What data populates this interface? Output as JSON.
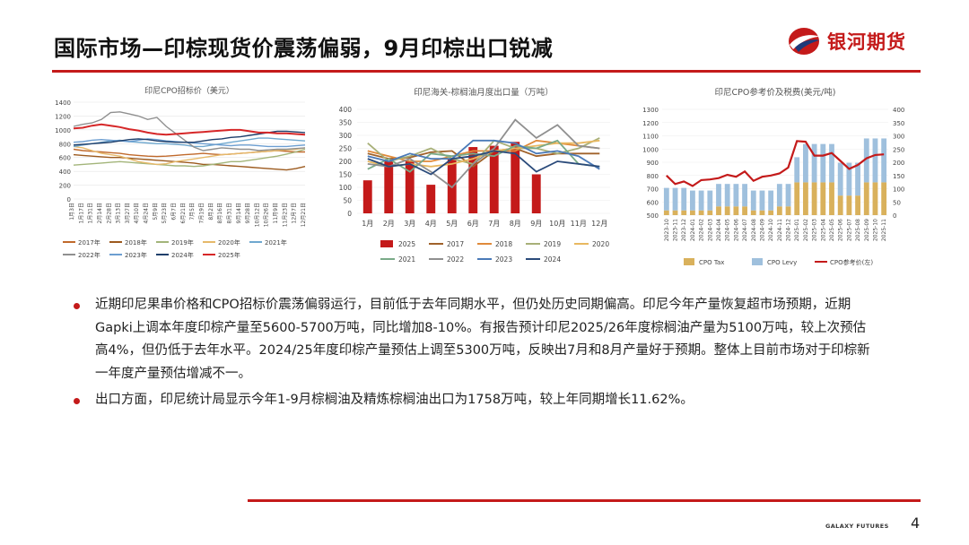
{
  "header": {
    "title": "国际市场—印棕现货价震荡偏弱，9月印棕出口锐减",
    "brand": "银河期货",
    "brand_colors": {
      "red": "#c41a1a",
      "navy": "#1f3a7a"
    }
  },
  "charts": [
    {
      "title": "印尼CPO招标价（美元）",
      "type": "line",
      "y_ticks": [
        "0",
        "200",
        "400",
        "600",
        "800",
        "1000",
        "1200",
        "1400"
      ],
      "x_ticks": [
        "1月3日",
        "1月17日",
        "1月31日",
        "2月14日",
        "2月28日",
        "3月13日",
        "3月27日",
        "4月10日",
        "4月24日",
        "5月9日",
        "5月23日",
        "6月7日",
        "6月21日",
        "7月5日",
        "7月19日",
        "8月2日",
        "8月16日",
        "8月31日",
        "9月14日",
        "9月28日",
        "10月12日",
        "10月26日",
        "11月9日",
        "11月23日",
        "12月7日",
        "12月21日"
      ],
      "legend": [
        "2017年",
        "2018年",
        "2019年",
        "2020年",
        "2021年",
        "2022年",
        "2023年",
        "2024年",
        "2025年"
      ],
      "colors": [
        "#c0692b",
        "#9c5a1e",
        "#a3b57a",
        "#e6b96a",
        "#6fa8cf",
        "#8f8f8f",
        "#6c9ed1",
        "#1f3f6b",
        "#d62728"
      ]
    },
    {
      "title": "印尼海关-棕榈油月度出口量（万吨）",
      "type": "bar+line",
      "y_ticks": [
        "0",
        "50",
        "100",
        "150",
        "200",
        "250",
        "300",
        "350",
        "400"
      ],
      "categories": [
        "1月",
        "2月",
        "3月",
        "4月",
        "5月",
        "6月",
        "7月",
        "8月",
        "9月",
        "10月",
        "11月",
        "12月"
      ],
      "legend": [
        "2025",
        "2017",
        "2018",
        "2019",
        "2020",
        "2021",
        "2022",
        "2023",
        "2024"
      ],
      "colors": [
        "#c41a1a",
        "#a0622a",
        "#e08a3a",
        "#a8b078",
        "#e8b860",
        "#7aaa88",
        "#8f8f8f",
        "#4a7ab8",
        "#2a4a7a"
      ]
    },
    {
      "title": "印尼CPO参考价及税费(美元/吨)",
      "type": "bar+line",
      "y_left_ticks": [
        "500",
        "600",
        "700",
        "800",
        "900",
        "1000",
        "1100",
        "1200",
        "1300"
      ],
      "y_right_ticks": [
        "0",
        "50",
        "100",
        "150",
        "200",
        "250",
        "300",
        "350",
        "400"
      ],
      "x_ticks": [
        "2023-10",
        "2023-11",
        "2023-12",
        "2024-01",
        "2024-02",
        "2024-03",
        "2024-04",
        "2024-05",
        "2024-06",
        "2024-07",
        "2024-08",
        "2024-09",
        "2024-10",
        "2024-11",
        "2024-12",
        "2025-01",
        "2025-02",
        "2025-03",
        "2025-04",
        "2025-05",
        "2025-06",
        "2025-07",
        "2025-08",
        "2025-09",
        "2025-10",
        "2025-11"
      ],
      "legend": [
        "CPO Tax",
        "CPO Levy",
        "CPO参考价(左)"
      ],
      "colors": [
        "#d9b15c",
        "#9fc0dd",
        "#c41a1a"
      ]
    }
  ],
  "chart_data": [
    {
      "type": "line",
      "title": "印尼CPO招标价（美元）",
      "ylim": [
        0,
        1400
      ],
      "series": [
        {
          "name": "2017年",
          "values": [
            720,
            700,
            690,
            680,
            670,
            660,
            640,
            630,
            620,
            615,
            620,
            630,
            640,
            650,
            660,
            650,
            640,
            650,
            660,
            670,
            680,
            690,
            700,
            690,
            680,
            680
          ]
        },
        {
          "name": "2018年",
          "values": [
            640,
            630,
            620,
            610,
            600,
            600,
            590,
            580,
            570,
            560,
            550,
            540,
            530,
            520,
            500,
            500,
            490,
            480,
            470,
            460,
            450,
            440,
            430,
            420,
            440,
            470
          ]
        },
        {
          "name": "2019年",
          "values": [
            490,
            500,
            510,
            520,
            530,
            540,
            530,
            520,
            510,
            500,
            490,
            480,
            480,
            470,
            480,
            500,
            520,
            540,
            540,
            560,
            580,
            600,
            620,
            650,
            680,
            720
          ]
        },
        {
          "name": "2020年",
          "values": [
            760,
            740,
            700,
            660,
            640,
            620,
            580,
            540,
            520,
            500,
            510,
            540,
            560,
            580,
            600,
            620,
            640,
            650,
            660,
            670,
            680,
            690,
            700,
            710,
            720,
            740
          ]
        },
        {
          "name": "2021年",
          "values": [
            760,
            780,
            800,
            820,
            840,
            850,
            830,
            820,
            810,
            800,
            800,
            790,
            780,
            760,
            760,
            780,
            800,
            820,
            840,
            860,
            880,
            880,
            870,
            860,
            850,
            840
          ]
        },
        {
          "name": "2022年",
          "values": [
            1050,
            1080,
            1100,
            1150,
            1250,
            1260,
            1230,
            1200,
            1150,
            1180,
            1050,
            950,
            850,
            750,
            700,
            720,
            740,
            730,
            720,
            720,
            700,
            710,
            720,
            720,
            730,
            740
          ]
        },
        {
          "name": "2023年",
          "values": [
            820,
            830,
            850,
            860,
            850,
            840,
            830,
            850,
            870,
            860,
            840,
            830,
            820,
            810,
            800,
            790,
            780,
            770,
            780,
            780,
            770,
            760,
            760,
            760,
            770,
            780
          ]
        },
        {
          "name": "2024年",
          "values": [
            780,
            790,
            800,
            810,
            820,
            840,
            860,
            870,
            860,
            840,
            830,
            820,
            820,
            820,
            840,
            860,
            870,
            890,
            900,
            920,
            940,
            960,
            980,
            980,
            970,
            960
          ]
        },
        {
          "name": "2025年",
          "values": [
            1020,
            1030,
            1060,
            1080,
            1060,
            1040,
            1010,
            990,
            960,
            940,
            930,
            940,
            950,
            960,
            970,
            980,
            990,
            1000,
            1000,
            980,
            960,
            960,
            950,
            950,
            940,
            930
          ]
        }
      ]
    },
    {
      "type": "bar",
      "title": "印尼海关-棕榈油月度出口量（万吨）",
      "categories": [
        "1月",
        "2月",
        "3月",
        "4月",
        "5月",
        "6月",
        "7月",
        "8月",
        "9月",
        "10月",
        "11月",
        "12月"
      ],
      "ylim": [
        0,
        400
      ],
      "series": [
        {
          "name": "2025",
          "type": "bar",
          "values": [
            127,
            200,
            203,
            110,
            210,
            255,
            260,
            275,
            150,
            null,
            null,
            null
          ]
        },
        {
          "name": "2017",
          "type": "line",
          "values": [
            230,
            210,
            215,
            235,
            240,
            180,
            240,
            250,
            220,
            230,
            230,
            230
          ]
        },
        {
          "name": "2018",
          "type": "line",
          "values": [
            240,
            220,
            200,
            200,
            220,
            240,
            240,
            240,
            280,
            270,
            260,
            250
          ]
        },
        {
          "name": "2019",
          "type": "line",
          "values": [
            270,
            200,
            220,
            250,
            210,
            190,
            280,
            250,
            250,
            230,
            250,
            290
          ]
        },
        {
          "name": "2020",
          "type": "line",
          "values": [
            200,
            180,
            190,
            180,
            190,
            210,
            240,
            250,
            260,
            270,
            270,
            280
          ]
        },
        {
          "name": "2021",
          "type": "line",
          "values": [
            170,
            210,
            160,
            230,
            220,
            230,
            220,
            260,
            250,
            280,
            190,
            180
          ]
        },
        {
          "name": "2022",
          "type": "line",
          "values": [
            190,
            180,
            210,
            160,
            100,
            190,
            250,
            360,
            290,
            340,
            260,
            250
          ]
        },
        {
          "name": "2023",
          "type": "line",
          "values": [
            220,
            200,
            230,
            210,
            210,
            280,
            280,
            270,
            230,
            240,
            220,
            170
          ]
        },
        {
          "name": "2024",
          "type": "line",
          "values": [
            210,
            180,
            190,
            150,
            210,
            220,
            240,
            230,
            160,
            200,
            190,
            180
          ]
        }
      ]
    },
    {
      "type": "bar",
      "title": "印尼CPO参考价及税费(美元/吨)",
      "categories": [
        "2023-10",
        "2023-11",
        "2023-12",
        "2024-01",
        "2024-02",
        "2024-03",
        "2024-04",
        "2024-05",
        "2024-06",
        "2024-07",
        "2024-08",
        "2024-09",
        "2024-10",
        "2024-11",
        "2024-12",
        "2025-01",
        "2025-02",
        "2025-03",
        "2025-04",
        "2025-05",
        "2025-06",
        "2025-07",
        "2025-08",
        "2025-09",
        "2025-10",
        "2025-11"
      ],
      "y_left_lim": [
        500,
        1300
      ],
      "y_right_lim": [
        0,
        400
      ],
      "series": [
        {
          "name": "CPO Tax",
          "axis": "right",
          "values": [
            18,
            18,
            18,
            18,
            18,
            18,
            33,
            33,
            33,
            33,
            18,
            18,
            18,
            33,
            33,
            124,
            124,
            124,
            124,
            124,
            74,
            74,
            74,
            124,
            124,
            124
          ]
        },
        {
          "name": "CPO Levy",
          "axis": "right",
          "values": [
            85,
            85,
            85,
            75,
            75,
            75,
            85,
            85,
            85,
            85,
            75,
            75,
            75,
            85,
            85,
            95,
            145,
            145,
            145,
            145,
            124,
            124,
            124,
            166,
            166,
            166
          ]
        },
        {
          "name": "CPO参考价(左)",
          "axis": "left",
          "values": [
            800,
            735,
            755,
            720,
            765,
            770,
            780,
            805,
            790,
            830,
            760,
            790,
            800,
            815,
            860,
            1060,
            1055,
            950,
            950,
            970,
            910,
            850,
            880,
            930,
            955,
            960
          ]
        }
      ]
    }
  ],
  "bullets": [
    "近期印尼果串价格和CPO招标价震荡偏弱运行，目前低于去年同期水平，但仍处历史同期偏高。印尼今年产量恢复超市场预期，近期Gapki上调本年度印棕产量至5600-5700万吨，同比增加8-10%。有报告预计印尼2025/26年度棕榈油产量为5100万吨，较上次预估高4%，但仍低于去年水平。2024/25年度印棕产量预估上调至5300万吨，反映出7月和8月产量好于预期。整体上目前市场对于印棕新一年度产量预估增减不一。",
    "出口方面，印尼统计局显示今年1-9月棕榈油及精炼棕榈油出口为1758万吨，较上年同期增长11.62%。"
  ],
  "footer": {
    "company_en": "GALAXY FUTURES",
    "page": "4"
  }
}
